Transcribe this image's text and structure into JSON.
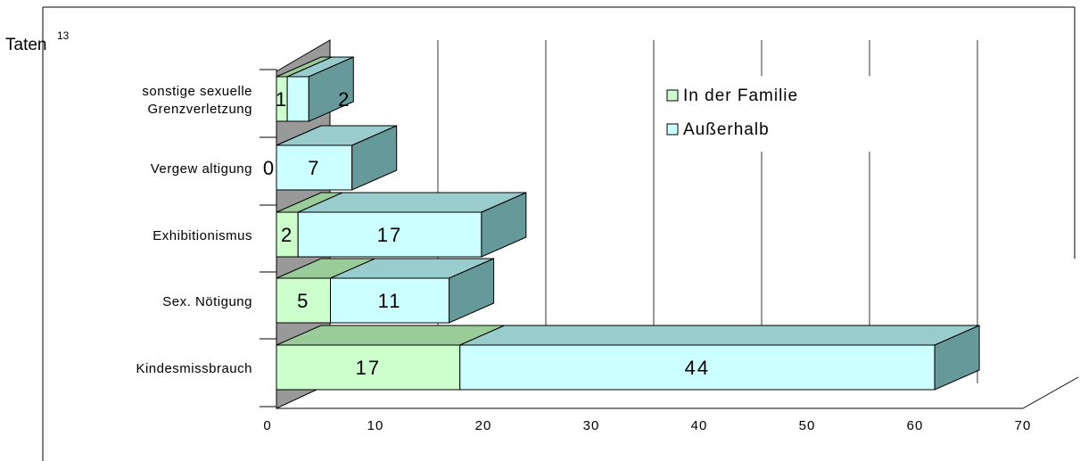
{
  "footnote": {
    "text": "Taten",
    "superscript": "13"
  },
  "chart_data": {
    "type": "bar",
    "orientation": "horizontal",
    "stacked": true,
    "three_d": true,
    "categories": [
      "Kindesmissbrauch",
      "Sex. Nötigung",
      "Exhibitionismus",
      "Vergew altigung",
      "sonstige sexuelle\nGrenzverletzung"
    ],
    "series": [
      {
        "name": "In der Familie",
        "values": [
          17,
          5,
          2,
          0,
          1
        ],
        "color": "#ccffcc"
      },
      {
        "name": "Außerhalb",
        "values": [
          44,
          11,
          17,
          7,
          2
        ],
        "color": "#ccffff"
      }
    ],
    "data_labels": [
      [
        "17",
        "5",
        "2",
        "0",
        "1"
      ],
      [
        "44",
        "11",
        "17",
        "7",
        "2"
      ]
    ],
    "xlim": [
      0,
      70
    ],
    "xticks": [
      0,
      10,
      20,
      30,
      40,
      50,
      60,
      70
    ],
    "grid": true,
    "legend_position": "top-right",
    "legend_labels": [
      "In der Familie",
      "Außerhalb"
    ],
    "colors": {
      "familie_front": "#ccffcc",
      "familie_top": "#99cc99",
      "ausserhalb_front": "#ccffff",
      "ausserhalb_top": "#99cccc",
      "side": "#669999",
      "wall": "#999999"
    }
  }
}
